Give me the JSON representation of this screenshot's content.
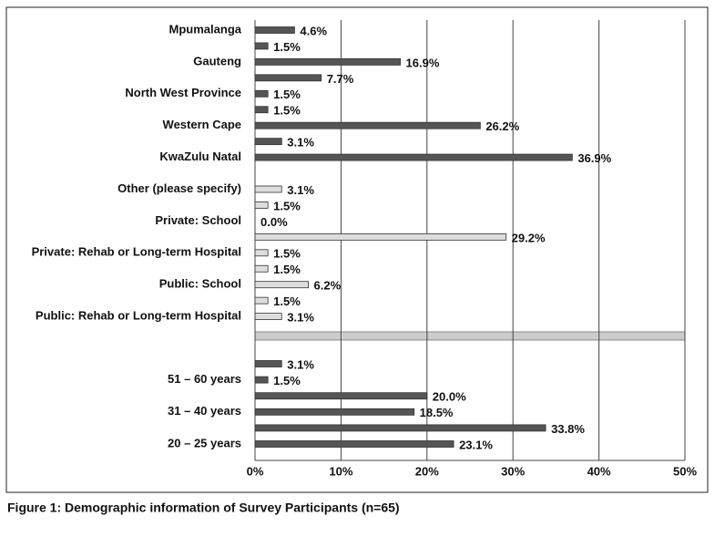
{
  "chart_data": {
    "type": "hbar",
    "caption": "Figure 1: Demographic information of Survey Participants (n=65)",
    "categories": [
      "Mpumalanga",
      null,
      "Gauteng",
      null,
      "North West Province",
      null,
      "Western Cape",
      null,
      "KwaZulu Natal",
      null,
      "Other (please specify)",
      null,
      "Private: School",
      null,
      "Private: Rehab or Long-term Hospital",
      null,
      "Public: School",
      null,
      "Public: Rehab or Long-term Hospital",
      null,
      "51 – 60 years",
      null,
      "31 – 40 years",
      null,
      "20 – 25 years"
    ],
    "values": [
      4.6,
      1.5,
      16.9,
      7.7,
      1.5,
      1.5,
      26.2,
      3.1,
      36.9,
      null,
      3.1,
      1.5,
      0.0,
      29.2,
      1.5,
      1.5,
      6.2,
      1.5,
      3.1,
      3.1,
      1.5,
      20.0,
      18.5,
      33.8,
      23.1
    ],
    "value_labels": [
      "4.6%",
      "1.5%",
      "16.9%",
      "7.7%",
      "1.5%",
      "1.5%",
      "26.2%",
      "3.1%",
      "36.9%",
      null,
      "3.1%",
      "1.5%",
      "0.0%",
      "29.2%",
      "1.5%",
      "1.5%",
      "6.2%",
      "1.5%",
      "3.1%",
      "3.1%",
      "1.5%",
      "20.0%",
      "18.5%",
      "33.8%",
      "23.1%"
    ],
    "colors": [
      "#555",
      "#555",
      "#555",
      "#555",
      "#555",
      "#555",
      "#555",
      "#555",
      "#555",
      null,
      "#ddd",
      "#ddd",
      "#ddd",
      "#ddd",
      "#ddd",
      "#ddd",
      "#ddd",
      "#ddd",
      "#ddd",
      "#555",
      "#555",
      "#555",
      "#555",
      "#555",
      "#555"
    ],
    "xlim": [
      0,
      50
    ],
    "xticks": [
      {
        "value": 0,
        "label": "0%"
      },
      {
        "value": 10,
        "label": "10%"
      },
      {
        "value": 20,
        "label": "20%"
      },
      {
        "value": 30,
        "label": "30%"
      },
      {
        "value": 40,
        "label": "40%"
      },
      {
        "value": 50,
        "label": "50%"
      }
    ],
    "grid": true
  }
}
